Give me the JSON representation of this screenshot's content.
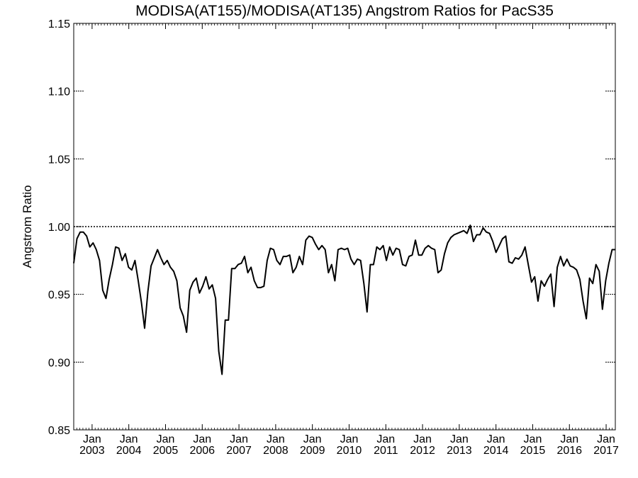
{
  "chart_data": {
    "type": "line",
    "title": "MODISA(AT155)/MODISA(AT135)  Angstrom Ratios for PacS35",
    "xlabel": "",
    "ylabel": "Angstrom Ratio",
    "xlim": [
      2002.5,
      2017.25
    ],
    "ylim": [
      0.85,
      1.15
    ],
    "y_ticks": [
      "0.85",
      "0.90",
      "0.95",
      "1.00",
      "1.05",
      "1.10",
      "1.15"
    ],
    "x_ticks": [
      {
        "month": "Jan",
        "year": "2003"
      },
      {
        "month": "Jan",
        "year": "2004"
      },
      {
        "month": "Jan",
        "year": "2005"
      },
      {
        "month": "Jan",
        "year": "2006"
      },
      {
        "month": "Jan",
        "year": "2007"
      },
      {
        "month": "Jan",
        "year": "2008"
      },
      {
        "month": "Jan",
        "year": "2009"
      },
      {
        "month": "Jan",
        "year": "2010"
      },
      {
        "month": "Jan",
        "year": "2011"
      },
      {
        "month": "Jan",
        "year": "2012"
      },
      {
        "month": "Jan",
        "year": "2013"
      },
      {
        "month": "Jan",
        "year": "2014"
      },
      {
        "month": "Jan",
        "year": "2015"
      },
      {
        "month": "Jan",
        "year": "2016"
      },
      {
        "month": "Jan",
        "year": "2017"
      }
    ],
    "reference_line": 1.0,
    "grid": false,
    "series": [
      {
        "color": "#000000",
        "points": [
          [
            2002.5,
            0.973
          ],
          [
            2002.58,
            0.991
          ],
          [
            2002.67,
            0.996
          ],
          [
            2002.75,
            0.996
          ],
          [
            2002.83,
            0.993
          ],
          [
            2002.92,
            0.985
          ],
          [
            2003.0,
            0.988
          ],
          [
            2003.08,
            0.983
          ],
          [
            2003.17,
            0.975
          ],
          [
            2003.25,
            0.953
          ],
          [
            2003.33,
            0.947
          ],
          [
            2003.42,
            0.961
          ],
          [
            2003.5,
            0.972
          ],
          [
            2003.58,
            0.985
          ],
          [
            2003.67,
            0.984
          ],
          [
            2003.75,
            0.975
          ],
          [
            2003.83,
            0.98
          ],
          [
            2003.92,
            0.97
          ],
          [
            2004.0,
            0.968
          ],
          [
            2004.08,
            0.975
          ],
          [
            2004.17,
            0.96
          ],
          [
            2004.25,
            0.944
          ],
          [
            2004.33,
            0.925
          ],
          [
            2004.42,
            0.952
          ],
          [
            2004.5,
            0.971
          ],
          [
            2004.58,
            0.977
          ],
          [
            2004.67,
            0.983
          ],
          [
            2004.75,
            0.977
          ],
          [
            2004.83,
            0.972
          ],
          [
            2004.92,
            0.975
          ],
          [
            2005.0,
            0.97
          ],
          [
            2005.08,
            0.967
          ],
          [
            2005.17,
            0.96
          ],
          [
            2005.25,
            0.94
          ],
          [
            2005.33,
            0.934
          ],
          [
            2005.42,
            0.922
          ],
          [
            2005.5,
            0.953
          ],
          [
            2005.58,
            0.959
          ],
          [
            2005.67,
            0.962
          ],
          [
            2005.75,
            0.951
          ],
          [
            2005.83,
            0.956
          ],
          [
            2005.92,
            0.963
          ],
          [
            2006.0,
            0.954
          ],
          [
            2006.08,
            0.957
          ],
          [
            2006.17,
            0.947
          ],
          [
            2006.25,
            0.908
          ],
          [
            2006.33,
            0.891
          ],
          [
            2006.42,
            0.931
          ],
          [
            2006.5,
            0.931
          ],
          [
            2006.58,
            0.969
          ],
          [
            2006.67,
            0.969
          ],
          [
            2006.75,
            0.972
          ],
          [
            2006.83,
            0.973
          ],
          [
            2006.92,
            0.978
          ],
          [
            2007.0,
            0.966
          ],
          [
            2007.08,
            0.97
          ],
          [
            2007.17,
            0.96
          ],
          [
            2007.25,
            0.955
          ],
          [
            2007.33,
            0.955
          ],
          [
            2007.42,
            0.956
          ],
          [
            2007.5,
            0.975
          ],
          [
            2007.58,
            0.984
          ],
          [
            2007.67,
            0.983
          ],
          [
            2007.75,
            0.975
          ],
          [
            2007.83,
            0.972
          ],
          [
            2007.92,
            0.978
          ],
          [
            2008.0,
            0.978
          ],
          [
            2008.08,
            0.979
          ],
          [
            2008.17,
            0.966
          ],
          [
            2008.25,
            0.97
          ],
          [
            2008.33,
            0.978
          ],
          [
            2008.42,
            0.972
          ],
          [
            2008.5,
            0.99
          ],
          [
            2008.58,
            0.993
          ],
          [
            2008.67,
            0.992
          ],
          [
            2008.75,
            0.987
          ],
          [
            2008.83,
            0.983
          ],
          [
            2008.92,
            0.986
          ],
          [
            2009.0,
            0.983
          ],
          [
            2009.08,
            0.966
          ],
          [
            2009.17,
            0.972
          ],
          [
            2009.25,
            0.96
          ],
          [
            2009.33,
            0.983
          ],
          [
            2009.42,
            0.984
          ],
          [
            2009.5,
            0.983
          ],
          [
            2009.58,
            0.984
          ],
          [
            2009.67,
            0.976
          ],
          [
            2009.75,
            0.972
          ],
          [
            2009.83,
            0.976
          ],
          [
            2009.92,
            0.975
          ],
          [
            2010.0,
            0.958
          ],
          [
            2010.08,
            0.937
          ],
          [
            2010.17,
            0.972
          ],
          [
            2010.25,
            0.972
          ],
          [
            2010.33,
            0.985
          ],
          [
            2010.42,
            0.983
          ],
          [
            2010.5,
            0.986
          ],
          [
            2010.58,
            0.975
          ],
          [
            2010.67,
            0.985
          ],
          [
            2010.75,
            0.979
          ],
          [
            2010.83,
            0.984
          ],
          [
            2010.92,
            0.983
          ],
          [
            2011.0,
            0.972
          ],
          [
            2011.08,
            0.971
          ],
          [
            2011.17,
            0.978
          ],
          [
            2011.25,
            0.979
          ],
          [
            2011.33,
            0.99
          ],
          [
            2011.42,
            0.979
          ],
          [
            2011.5,
            0.979
          ],
          [
            2011.58,
            0.984
          ],
          [
            2011.67,
            0.986
          ],
          [
            2011.75,
            0.984
          ],
          [
            2011.83,
            0.983
          ],
          [
            2011.92,
            0.966
          ],
          [
            2012.0,
            0.968
          ],
          [
            2012.08,
            0.98
          ],
          [
            2012.17,
            0.988
          ],
          [
            2012.25,
            0.992
          ],
          [
            2012.33,
            0.994
          ],
          [
            2012.42,
            0.995
          ],
          [
            2012.5,
            0.996
          ],
          [
            2012.58,
            0.997
          ],
          [
            2012.67,
            0.995
          ],
          [
            2012.75,
            1.001
          ],
          [
            2012.83,
            0.989
          ],
          [
            2012.92,
            0.994
          ],
          [
            2013.0,
            0.994
          ],
          [
            2013.08,
            0.999
          ],
          [
            2013.17,
            0.996
          ],
          [
            2013.25,
            0.995
          ],
          [
            2013.33,
            0.989
          ],
          [
            2013.42,
            0.981
          ],
          [
            2013.5,
            0.986
          ],
          [
            2013.58,
            0.991
          ],
          [
            2013.67,
            0.993
          ],
          [
            2013.75,
            0.974
          ],
          [
            2013.83,
            0.973
          ],
          [
            2013.92,
            0.977
          ],
          [
            2014.0,
            0.976
          ],
          [
            2014.08,
            0.979
          ],
          [
            2014.17,
            0.985
          ],
          [
            2014.25,
            0.972
          ],
          [
            2014.33,
            0.959
          ],
          [
            2014.42,
            0.963
          ],
          [
            2014.5,
            0.945
          ],
          [
            2014.58,
            0.96
          ],
          [
            2014.67,
            0.956
          ],
          [
            2014.75,
            0.961
          ],
          [
            2014.83,
            0.965
          ],
          [
            2014.92,
            0.941
          ],
          [
            2015.0,
            0.97
          ],
          [
            2015.08,
            0.978
          ],
          [
            2015.17,
            0.971
          ],
          [
            2015.25,
            0.976
          ],
          [
            2015.33,
            0.971
          ],
          [
            2015.42,
            0.97
          ],
          [
            2015.5,
            0.968
          ],
          [
            2015.58,
            0.961
          ],
          [
            2015.67,
            0.945
          ],
          [
            2015.75,
            0.932
          ],
          [
            2015.83,
            0.962
          ],
          [
            2015.92,
            0.958
          ],
          [
            2016.0,
            0.972
          ],
          [
            2016.08,
            0.967
          ],
          [
            2016.17,
            0.939
          ],
          [
            2016.25,
            0.96
          ],
          [
            2016.33,
            0.973
          ],
          [
            2016.42,
            0.983
          ],
          [
            2016.5,
            0.983
          ]
        ]
      }
    ]
  }
}
